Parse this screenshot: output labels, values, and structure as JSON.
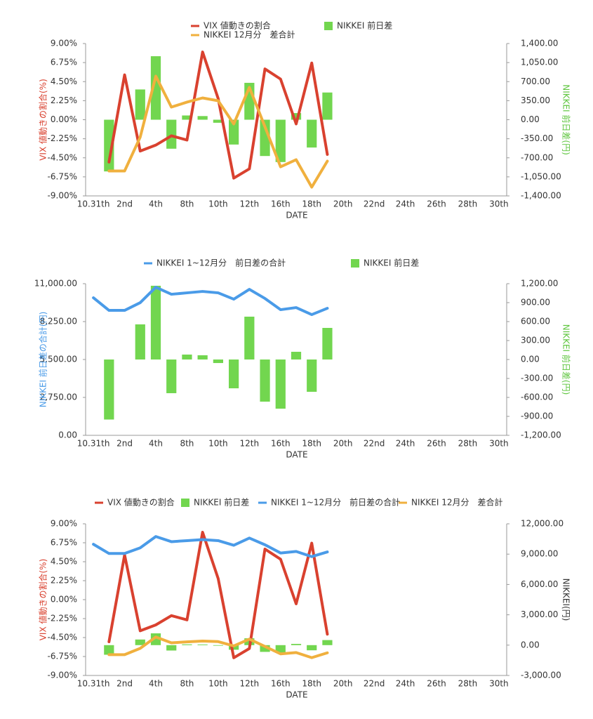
{
  "chart_data": [
    {
      "type": "combo",
      "categories": [
        "10.31th",
        null,
        "2nd",
        null,
        "4th",
        null,
        "8th",
        null,
        "10th",
        null,
        "12th",
        null,
        "16th",
        null,
        "18th",
        null,
        "20th",
        null,
        "22nd",
        null,
        "24th",
        null,
        "26th",
        null,
        "28th",
        null,
        "30th"
      ],
      "xlabel": "DATE",
      "ylabel": "VIX 値動きの割合(%)",
      "ylabel_color": "#d9412f",
      "y2label": "NIKKEI 前日差(円)",
      "y2label_color": "#5fc63f",
      "ylim": [
        -9,
        9
      ],
      "yticks": [
        {
          "value": -9,
          "label": "-9.00%"
        },
        {
          "value": -6.75,
          "label": "-6.75%"
        },
        {
          "value": -4.5,
          "label": "-4.50%"
        },
        {
          "value": -2.25,
          "label": "-2.25%"
        },
        {
          "value": 0,
          "label": "0.00%"
        },
        {
          "value": 2.25,
          "label": "2.25%"
        },
        {
          "value": 4.5,
          "label": "4.50%"
        },
        {
          "value": 6.75,
          "label": "6.75%"
        },
        {
          "value": 9,
          "label": "9.00%"
        }
      ],
      "y2lim": [
        -1400,
        1400
      ],
      "y2ticks": [
        {
          "value": -1400,
          "label": "-1,400.00"
        },
        {
          "value": -1050,
          "label": "-1,050.00"
        },
        {
          "value": -700,
          "label": "-700.00"
        },
        {
          "value": -350,
          "label": "-350.00"
        },
        {
          "value": 0,
          "label": "0.00"
        },
        {
          "value": 350,
          "label": "350.00"
        },
        {
          "value": 700,
          "label": "700.00"
        },
        {
          "value": 1050,
          "label": "1,050.00"
        },
        {
          "value": 1400,
          "label": "1,400.00"
        }
      ],
      "series": [
        {
          "name": "VIX 値動きの割合",
          "type": "line",
          "axis": "y",
          "color": "#d9412f",
          "values": [
            null,
            -5.0,
            5.3,
            -3.7,
            -3.0,
            -1.9,
            -2.4,
            8.0,
            2.5,
            -6.9,
            -5.8,
            6.0,
            4.8,
            -0.5,
            6.7,
            -4.1,
            null,
            null,
            null,
            null,
            null,
            null,
            null,
            null,
            null,
            null,
            null
          ]
        },
        {
          "name": "NIKKEI 12月分　差合計",
          "type": "line",
          "axis": "y2",
          "color": "#f0b03e",
          "values": [
            null,
            -942,
            -942,
            -320,
            800,
            232,
            323,
            400,
            348,
            -77,
            594,
            -129,
            -865,
            -735,
            -1239,
            -761,
            null,
            null,
            null,
            null,
            null,
            null,
            null,
            null,
            null,
            null,
            null
          ]
        },
        {
          "name": "NIKKEI 前日差",
          "type": "bar",
          "axis": "y2",
          "color": "#72d64f",
          "values": [
            null,
            -950,
            0,
            556,
            1167,
            -533,
            78,
            67,
            -56,
            -456,
            678,
            -667,
            -778,
            122,
            -511,
            500,
            null,
            null,
            null,
            null,
            null,
            null,
            null,
            null,
            null,
            null,
            null
          ]
        }
      ]
    },
    {
      "type": "combo",
      "categories": [
        "10.31th",
        null,
        "2nd",
        null,
        "4th",
        null,
        "8th",
        null,
        "10th",
        null,
        "12th",
        null,
        "16th",
        null,
        "18th",
        null,
        "20th",
        null,
        "22nd",
        null,
        "24th",
        null,
        "26th",
        null,
        "28th",
        null,
        "30th"
      ],
      "xlabel": "DATE",
      "ylabel": "NIKKEI 前日差の合計(円)",
      "ylabel_color": "#4a9be8",
      "y2label": "NIKKEI 前日差(円)",
      "y2label_color": "#5fc63f",
      "ylim": [
        0,
        11000
      ],
      "yticks": [
        {
          "value": 0,
          "label": "0.00"
        },
        {
          "value": 2750,
          "label": "2,750.00"
        },
        {
          "value": 5500,
          "label": "5,500.00"
        },
        {
          "value": 8250,
          "label": "8,250.00"
        },
        {
          "value": 11000,
          "label": "11,000.00"
        }
      ],
      "y2lim": [
        -1200,
        1200
      ],
      "y2ticks": [
        {
          "value": -1200,
          "label": "-1,200.00"
        },
        {
          "value": -900,
          "label": "-900.00"
        },
        {
          "value": -600,
          "label": "-600.00"
        },
        {
          "value": -300,
          "label": "-300.00"
        },
        {
          "value": 0,
          "label": "0.00"
        },
        {
          "value": 300,
          "label": "300.00"
        },
        {
          "value": 600,
          "label": "600.00"
        },
        {
          "value": 900,
          "label": "900.00"
        },
        {
          "value": 1200,
          "label": "1,200.00"
        }
      ],
      "series": [
        {
          "name": "NIKKEI 1~12月分　前日差の合計",
          "type": "line",
          "axis": "y",
          "color": "#4a9be8",
          "values": [
            9977,
            9062,
            9062,
            9622,
            10742,
            10233,
            10335,
            10437,
            10335,
            9876,
            10589,
            9927,
            9113,
            9265,
            8756,
            9215,
            null,
            null,
            null,
            null,
            null,
            null,
            null,
            null,
            null,
            null,
            null
          ]
        },
        {
          "name": "NIKKEI 前日差",
          "type": "bar",
          "axis": "y2",
          "color": "#72d64f",
          "values": [
            null,
            -950,
            0,
            556,
            1167,
            -533,
            78,
            67,
            -56,
            -456,
            678,
            -667,
            -778,
            122,
            -511,
            500,
            null,
            null,
            null,
            null,
            null,
            null,
            null,
            null,
            null,
            null,
            null
          ]
        }
      ]
    },
    {
      "type": "combo",
      "categories": [
        "10.31th",
        null,
        "2nd",
        null,
        "4th",
        null,
        "8th",
        null,
        "10th",
        null,
        "12th",
        null,
        "16th",
        null,
        "18th",
        null,
        "20th",
        null,
        "22nd",
        null,
        "24th",
        null,
        "26th",
        null,
        "28th",
        null,
        "30th"
      ],
      "xlabel": "DATE",
      "ylabel": "VIX 値動きの割合(%)",
      "ylabel_color": "#d9412f",
      "y2label": "NIKKEI(円)",
      "y2label_color": "#333333",
      "ylim": [
        -9,
        9
      ],
      "yticks": [
        {
          "value": -9,
          "label": "-9.00%"
        },
        {
          "value": -6.75,
          "label": "-6.75%"
        },
        {
          "value": -4.5,
          "label": "-4.50%"
        },
        {
          "value": -2.25,
          "label": "-2.25%"
        },
        {
          "value": 0,
          "label": "0.00%"
        },
        {
          "value": 2.25,
          "label": "2.25%"
        },
        {
          "value": 4.5,
          "label": "4.50%"
        },
        {
          "value": 6.75,
          "label": "6.75%"
        },
        {
          "value": 9,
          "label": "9.00%"
        }
      ],
      "y2lim": [
        -3000,
        12000
      ],
      "y2ticks": [
        {
          "value": -3000,
          "label": "-3,000.00"
        },
        {
          "value": 0,
          "label": "0.00"
        },
        {
          "value": 3000,
          "label": "3,000.00"
        },
        {
          "value": 6000,
          "label": "6,000.00"
        },
        {
          "value": 9000,
          "label": "9,000.00"
        },
        {
          "value": 12000,
          "label": "12,000.00"
        }
      ],
      "series": [
        {
          "name": "VIX 値動きの割合",
          "type": "line",
          "axis": "y",
          "color": "#d9412f",
          "values": [
            null,
            -5.0,
            5.3,
            -3.7,
            -3.0,
            -1.9,
            -2.4,
            8.0,
            2.5,
            -6.9,
            -5.8,
            6.0,
            4.8,
            -0.5,
            6.7,
            -4.1,
            null,
            null,
            null,
            null,
            null,
            null,
            null,
            null,
            null,
            null,
            null
          ]
        },
        {
          "name": "NIKKEI 前日差",
          "type": "bar",
          "axis": "y2",
          "color": "#72d64f",
          "values": [
            null,
            -950,
            0,
            556,
            1167,
            -533,
            78,
            67,
            -56,
            -456,
            678,
            -667,
            -778,
            122,
            -511,
            500,
            null,
            null,
            null,
            null,
            null,
            null,
            null,
            null,
            null,
            null,
            null
          ]
        },
        {
          "name": "NIKKEI 1~12月分　前日差の合計",
          "type": "line",
          "axis": "y2",
          "color": "#4a9be8",
          "values": [
            9977,
            9062,
            9062,
            9622,
            10742,
            10233,
            10335,
            10437,
            10335,
            9876,
            10589,
            9927,
            9113,
            9265,
            8756,
            9215,
            null,
            null,
            null,
            null,
            null,
            null,
            null,
            null,
            null,
            null,
            null
          ]
        },
        {
          "name": "NIKKEI 12月分　差合計",
          "type": "line",
          "axis": "y2",
          "color": "#f0b03e",
          "values": [
            null,
            -942,
            -942,
            -320,
            800,
            232,
            323,
            400,
            348,
            -77,
            594,
            -129,
            -865,
            -735,
            -1239,
            -761,
            null,
            null,
            null,
            null,
            null,
            null,
            null,
            null,
            null,
            null,
            null
          ]
        }
      ]
    }
  ]
}
